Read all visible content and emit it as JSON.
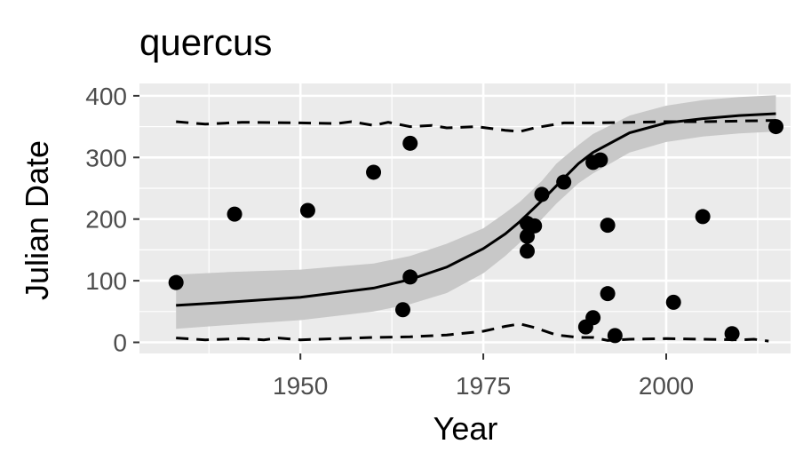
{
  "chart_data": {
    "type": "scatter",
    "title": "quercus",
    "xlabel": "Year",
    "ylabel": "Julian Date",
    "xlim": [
      1928,
      2017
    ],
    "ylim": [
      -18,
      420
    ],
    "x_ticks": [
      1950,
      1975,
      2000
    ],
    "y_ticks": [
      0,
      100,
      200,
      300,
      400
    ],
    "grid": true,
    "legend": "none",
    "colors": {
      "panel": "#ebebeb",
      "grid": "#ffffff",
      "points": "#000000",
      "ribbon": "#c8c8c8",
      "tick_text": "#4d4d4d"
    },
    "points": [
      {
        "x": 1933,
        "y": 97
      },
      {
        "x": 1941,
        "y": 208
      },
      {
        "x": 1951,
        "y": 214
      },
      {
        "x": 1960,
        "y": 276
      },
      {
        "x": 1964,
        "y": 53
      },
      {
        "x": 1965,
        "y": 323
      },
      {
        "x": 1965,
        "y": 106
      },
      {
        "x": 1981,
        "y": 193
      },
      {
        "x": 1981,
        "y": 172
      },
      {
        "x": 1981,
        "y": 148
      },
      {
        "x": 1982,
        "y": 189
      },
      {
        "x": 1983,
        "y": 240
      },
      {
        "x": 1986,
        "y": 260
      },
      {
        "x": 1989,
        "y": 25
      },
      {
        "x": 1990,
        "y": 40
      },
      {
        "x": 1990,
        "y": 292
      },
      {
        "x": 1991,
        "y": 296
      },
      {
        "x": 1992,
        "y": 190
      },
      {
        "x": 1992,
        "y": 79
      },
      {
        "x": 1993,
        "y": 11
      },
      {
        "x": 2001,
        "y": 65
      },
      {
        "x": 2005,
        "y": 204
      },
      {
        "x": 2009,
        "y": 14
      },
      {
        "x": 2015,
        "y": 350
      }
    ],
    "fit_line": [
      {
        "x": 1933,
        "y": 60
      },
      {
        "x": 1940,
        "y": 65
      },
      {
        "x": 1950,
        "y": 73
      },
      {
        "x": 1960,
        "y": 88
      },
      {
        "x": 1965,
        "y": 102
      },
      {
        "x": 1970,
        "y": 122
      },
      {
        "x": 1975,
        "y": 152
      },
      {
        "x": 1978,
        "y": 176
      },
      {
        "x": 1980,
        "y": 196
      },
      {
        "x": 1983,
        "y": 230
      },
      {
        "x": 1985,
        "y": 254
      },
      {
        "x": 1988,
        "y": 290
      },
      {
        "x": 1990,
        "y": 308
      },
      {
        "x": 1995,
        "y": 340
      },
      {
        "x": 2000,
        "y": 356
      },
      {
        "x": 2005,
        "y": 363
      },
      {
        "x": 2010,
        "y": 368
      },
      {
        "x": 2015,
        "y": 371
      }
    ],
    "ribbon_upper": [
      {
        "x": 1933,
        "y": 110
      },
      {
        "x": 1940,
        "y": 114
      },
      {
        "x": 1950,
        "y": 118
      },
      {
        "x": 1960,
        "y": 128
      },
      {
        "x": 1965,
        "y": 140
      },
      {
        "x": 1970,
        "y": 160
      },
      {
        "x": 1975,
        "y": 185
      },
      {
        "x": 1978,
        "y": 210
      },
      {
        "x": 1980,
        "y": 228
      },
      {
        "x": 1983,
        "y": 262
      },
      {
        "x": 1985,
        "y": 290
      },
      {
        "x": 1988,
        "y": 320
      },
      {
        "x": 1990,
        "y": 338
      },
      {
        "x": 1995,
        "y": 368
      },
      {
        "x": 2000,
        "y": 384
      },
      {
        "x": 2005,
        "y": 393
      },
      {
        "x": 2010,
        "y": 398
      },
      {
        "x": 2015,
        "y": 401
      }
    ],
    "ribbon_lower": [
      {
        "x": 1933,
        "y": 22
      },
      {
        "x": 1940,
        "y": 28
      },
      {
        "x": 1950,
        "y": 36
      },
      {
        "x": 1960,
        "y": 50
      },
      {
        "x": 1965,
        "y": 62
      },
      {
        "x": 1970,
        "y": 80
      },
      {
        "x": 1975,
        "y": 112
      },
      {
        "x": 1978,
        "y": 140
      },
      {
        "x": 1980,
        "y": 162
      },
      {
        "x": 1983,
        "y": 200
      },
      {
        "x": 1985,
        "y": 225
      },
      {
        "x": 1988,
        "y": 258
      },
      {
        "x": 1990,
        "y": 274
      },
      {
        "x": 1995,
        "y": 308
      },
      {
        "x": 2000,
        "y": 325
      },
      {
        "x": 2005,
        "y": 334
      },
      {
        "x": 2010,
        "y": 339
      },
      {
        "x": 2015,
        "y": 342
      }
    ],
    "upper_dashed": [
      {
        "x": 1933,
        "y": 358
      },
      {
        "x": 1937,
        "y": 354
      },
      {
        "x": 1942,
        "y": 357
      },
      {
        "x": 1950,
        "y": 356
      },
      {
        "x": 1955,
        "y": 355
      },
      {
        "x": 1957,
        "y": 358
      },
      {
        "x": 1960,
        "y": 352
      },
      {
        "x": 1962,
        "y": 357
      },
      {
        "x": 1965,
        "y": 350
      },
      {
        "x": 1968,
        "y": 352
      },
      {
        "x": 1970,
        "y": 348
      },
      {
        "x": 1974,
        "y": 350
      },
      {
        "x": 1978,
        "y": 344
      },
      {
        "x": 1980,
        "y": 342
      },
      {
        "x": 1982,
        "y": 348
      },
      {
        "x": 1986,
        "y": 356
      },
      {
        "x": 1990,
        "y": 356
      },
      {
        "x": 1995,
        "y": 357
      },
      {
        "x": 2000,
        "y": 358
      },
      {
        "x": 2005,
        "y": 358
      },
      {
        "x": 2010,
        "y": 359
      },
      {
        "x": 2015,
        "y": 360
      }
    ],
    "lower_dashed": [
      {
        "x": 1933,
        "y": 7
      },
      {
        "x": 1937,
        "y": 4
      },
      {
        "x": 1942,
        "y": 6
      },
      {
        "x": 1945,
        "y": 4
      },
      {
        "x": 1947,
        "y": 7
      },
      {
        "x": 1950,
        "y": 4
      },
      {
        "x": 1955,
        "y": 6
      },
      {
        "x": 1960,
        "y": 8
      },
      {
        "x": 1965,
        "y": 9
      },
      {
        "x": 1970,
        "y": 12
      },
      {
        "x": 1975,
        "y": 18
      },
      {
        "x": 1978,
        "y": 26
      },
      {
        "x": 1980,
        "y": 30
      },
      {
        "x": 1982,
        "y": 24
      },
      {
        "x": 1985,
        "y": 12
      },
      {
        "x": 1988,
        "y": 8
      },
      {
        "x": 1990,
        "y": 8
      },
      {
        "x": 1992,
        "y": 3
      },
      {
        "x": 1995,
        "y": 5
      },
      {
        "x": 2000,
        "y": 6
      },
      {
        "x": 2005,
        "y": 5
      },
      {
        "x": 2010,
        "y": 4
      },
      {
        "x": 2012,
        "y": 5
      },
      {
        "x": 2014,
        "y": 2
      }
    ]
  }
}
